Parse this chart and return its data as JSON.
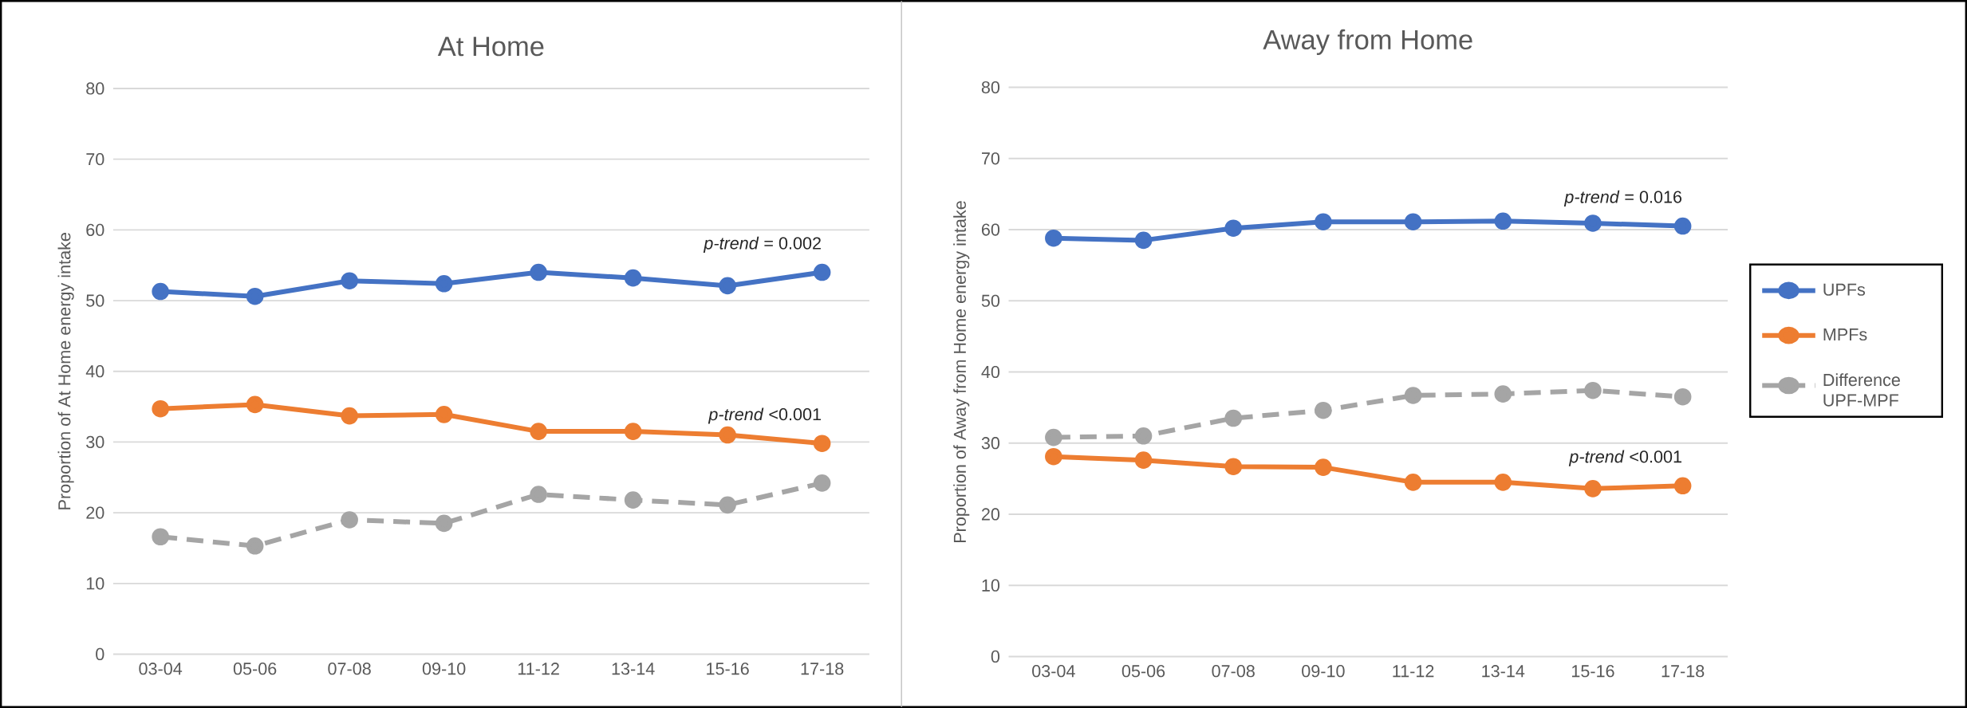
{
  "chart_data": [
    {
      "type": "line",
      "title": "At Home",
      "ylabel": "Proportion of At Home energy intake",
      "categories": [
        "03-04",
        "05-06",
        "07-08",
        "09-10",
        "11-12",
        "13-14",
        "15-16",
        "17-18"
      ],
      "series": [
        {
          "color": "#4472c4",
          "values": [
            51.3,
            50.6,
            52.8,
            52.4,
            54.0,
            53.2,
            52.1,
            54.0
          ]
        },
        {
          "color": "#ed7d31",
          "values": [
            34.7,
            35.3,
            33.7,
            33.9,
            31.5,
            31.5,
            31.0,
            29.8
          ]
        },
        {
          "color": "#a5a5a5",
          "line_style": "dashed",
          "values": [
            16.6,
            15.3,
            19.0,
            18.5,
            22.6,
            21.8,
            21.1,
            24.2
          ]
        }
      ],
      "ylim": [
        0,
        80
      ],
      "yticks": [
        0,
        10,
        20,
        30,
        40,
        50,
        60,
        70,
        80
      ],
      "grid": "y",
      "marker": "circle",
      "legend": false,
      "annotations": [
        "*p-trend* = 0.002",
        "*p-trend* <0.001"
      ]
    },
    {
      "type": "line",
      "title": "Away from Home",
      "ylabel": "Proportion of Away from Home energy intake",
      "categories": [
        "03-04",
        "05-06",
        "07-08",
        "09-10",
        "11-12",
        "13-14",
        "15-16",
        "17-18"
      ],
      "series": [
        {
          "name": "UPFs",
          "color": "#4472c4",
          "values": [
            58.8,
            58.5,
            60.2,
            61.1,
            61.1,
            61.2,
            60.9,
            60.5
          ]
        },
        {
          "name": "MPFs",
          "color": "#ed7d31",
          "values": [
            28.1,
            27.6,
            26.7,
            26.6,
            24.5,
            24.5,
            23.6,
            24.0
          ]
        },
        {
          "name": "Difference UPF-MPF",
          "color": "#a5a5a5",
          "line_style": "dashed",
          "values": [
            30.8,
            31.0,
            33.5,
            34.6,
            36.7,
            36.9,
            37.4,
            36.5
          ]
        }
      ],
      "ylim": [
        0,
        80
      ],
      "yticks": [
        0,
        10,
        20,
        30,
        40,
        50,
        60,
        70,
        80
      ],
      "grid": "y",
      "marker": "circle",
      "legend": "right",
      "annotations": [
        "*p-trend* = 0.016",
        "*p-trend* <0.001"
      ]
    }
  ]
}
